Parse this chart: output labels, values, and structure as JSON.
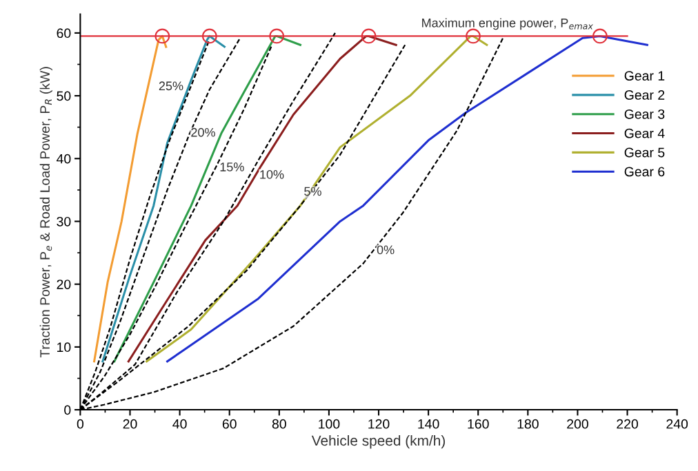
{
  "chart_data": {
    "type": "line",
    "xlabel": "Vehicle speed (km/h)",
    "ylabel": "Traction Power, P$_{e}$ & Road Load Power, P$_{R}$ (kW)",
    "xlim": [
      0,
      240
    ],
    "ylim": [
      0,
      63
    ],
    "xticks": [
      0,
      20,
      40,
      60,
      80,
      100,
      120,
      140,
      160,
      180,
      200,
      220,
      240
    ],
    "yticks": [
      0,
      10,
      20,
      30,
      40,
      50,
      60
    ],
    "grid": false,
    "legend": "right",
    "line_style": "solid",
    "marker": "none",
    "series": [
      {
        "name": "Gear 1",
        "color": "#f39c32",
        "x": [
          5.6,
          11,
          16.6,
          23,
          31.5,
          33,
          34.5
        ],
        "values": [
          7.7,
          20.3,
          30,
          44,
          58.9,
          59.5,
          57.8
        ]
      },
      {
        "name": "Gear 2",
        "color": "#2a8fa8",
        "x": [
          9,
          20,
          29.5,
          35,
          44.6,
          51,
          52,
          58
        ],
        "values": [
          7.7,
          21.4,
          32.5,
          42.5,
          52.5,
          58.9,
          59.5,
          57.8
        ]
      },
      {
        "name": "Gear 3",
        "color": "#2e9e4a",
        "x": [
          13.7,
          29.5,
          44.6,
          56.7,
          66,
          78.4,
          79,
          88.5
        ],
        "values": [
          7.7,
          20.3,
          32.5,
          44,
          50.7,
          59.5,
          59.5,
          58.1
        ]
      },
      {
        "name": "Gear 4",
        "color": "#8b1e1e",
        "x": [
          19.4,
          32.3,
          50.3,
          63.2,
          72.8,
          85.7,
          104.5,
          115,
          116,
          127
        ],
        "values": [
          7.7,
          15.8,
          27,
          32.5,
          38.9,
          47,
          55.9,
          59.5,
          59.5,
          58.1
        ]
      },
      {
        "name": "Gear 5",
        "color": "#b0b030",
        "x": [
          26.7,
          44.6,
          70,
          88.5,
          104.5,
          132.6,
          157,
          158,
          163.5
        ],
        "values": [
          7.7,
          12.8,
          24,
          32.5,
          41.8,
          50,
          59.5,
          59.5,
          58.1
        ]
      },
      {
        "name": "Gear 6",
        "color": "#1f2fd0",
        "x": [
          35,
          71.6,
          104.5,
          113.8,
          140,
          155,
          202,
          209,
          228
        ],
        "values": [
          7.7,
          17.7,
          30,
          32.5,
          42.9,
          47.3,
          59.2,
          59.5,
          58.1
        ]
      },
      {
        "color": "#e0303a",
        "x": [
          0,
          220
        ],
        "values": [
          59.5,
          59.5
        ]
      },
      {
        "type": "scatter",
        "marker": "circle",
        "color": "#e0303a",
        "x": [
          33,
          52,
          79,
          116,
          158,
          209
        ],
        "values": [
          59.5,
          59.5,
          59.5,
          59.5,
          59.5,
          59.5
        ]
      },
      {
        "line_style": "dashed",
        "color": "#000000",
        "x": [
          0,
          9.5,
          29.5,
          57.6,
          85.7,
          113.8,
          129.8,
          151.4,
          170
        ],
        "values": [
          0,
          0.8,
          2.8,
          6.6,
          13.3,
          23.3,
          31.4,
          44.4,
          59.2
        ]
      },
      {
        "line_style": "dashed",
        "color": "#000000",
        "x": [
          0,
          14.6,
          43.5,
          67,
          88.5,
          104.5,
          118.5,
          130.6
        ],
        "values": [
          0,
          4.3,
          13.3,
          22.2,
          32.5,
          40.6,
          50,
          58.1
        ]
      },
      {
        "line_style": "dashed",
        "color": "#000000",
        "x": [
          0,
          8,
          22,
          39,
          57.6,
          72,
          85.7,
          102.5
        ],
        "values": [
          0,
          2.5,
          7.2,
          18.8,
          30,
          40,
          49.2,
          60
        ]
      },
      {
        "line_style": "dashed",
        "color": "#000000",
        "x": [
          0,
          10,
          20,
          30,
          42,
          55,
          66,
          77
        ],
        "values": [
          0,
          5.5,
          12,
          19.5,
          29,
          39,
          48,
          58
        ]
      },
      {
        "line_style": "dashed",
        "color": "#000000",
        "x": [
          0,
          8,
          16,
          25,
          35,
          44,
          52,
          64
        ],
        "values": [
          0,
          6,
          14,
          24,
          35,
          44,
          51,
          59
        ]
      },
      {
        "line_style": "dashed",
        "color": "#000000",
        "x": [
          0,
          6,
          12,
          20,
          28,
          36,
          44,
          52
        ],
        "values": [
          0,
          6,
          13,
          24,
          34,
          43,
          51,
          59
        ]
      }
    ],
    "annotations": [
      "Maximum engine power, P$_{emax}$",
      {
        "text": "25%",
        "x": 36.5,
        "y": 51.4
      },
      {
        "text": "20%",
        "x": 49.4,
        "y": 44
      },
      {
        "text": "15%",
        "x": 61,
        "y": 38.5
      },
      {
        "text": "10%",
        "x": 77,
        "y": 37.3
      },
      {
        "text": "5%",
        "x": 93.5,
        "y": 34.6
      },
      {
        "text": "0%",
        "x": 122.8,
        "y": 25.3
      }
    ]
  }
}
